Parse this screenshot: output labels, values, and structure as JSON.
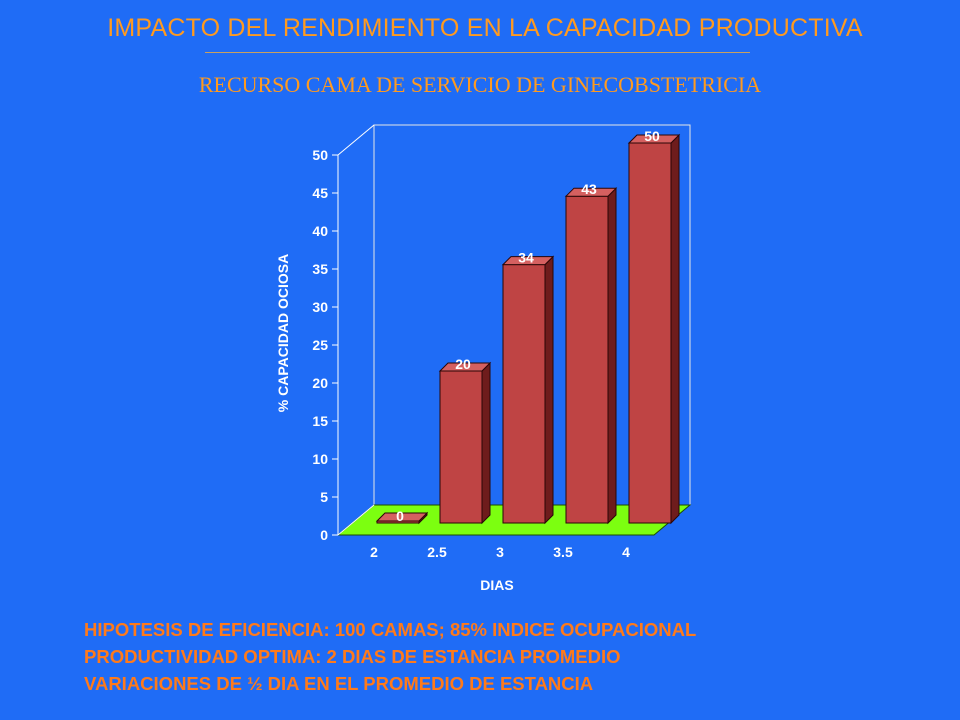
{
  "header": {
    "title": "IMPACTO DEL RENDIMIENTO EN LA CAPACIDAD PRODUCTIVA",
    "subtitle": "RECURSO CAMA DE SERVICIO DE GINECOBSTETRICIA"
  },
  "chart_data": {
    "type": "bar",
    "categories": [
      "2",
      "2.5",
      "3",
      "3.5",
      "4"
    ],
    "values": [
      0,
      20,
      34,
      43,
      50
    ],
    "data_labels": [
      "0",
      "20",
      "34",
      "43",
      "50"
    ],
    "xlabel": "DIAS",
    "ylabel": "% CAPACIDAD OCIOSA",
    "ylim": [
      0,
      50
    ],
    "yticks": [
      0,
      5,
      10,
      15,
      20,
      25,
      30,
      35,
      40,
      45,
      50
    ],
    "grid": false,
    "legend": "none",
    "style": "3d",
    "colors": {
      "bar_front": "#bf4444",
      "bar_side": "#6e1c1c",
      "bar_top": "#d56060",
      "floor": "#7cff10",
      "background": "#1f6cf6",
      "text": "#ffffff"
    }
  },
  "notes": [
    "HIPOTESIS DE EFICIENCIA: 100 CAMAS; 85% INDICE OCUPACIONAL",
    "PRODUCTIVIDAD OPTIMA: 2 DIAS DE ESTANCIA PROMEDIO",
    "VARIACIONES DE ½ DIA EN EL PROMEDIO DE ESTANCIA"
  ]
}
